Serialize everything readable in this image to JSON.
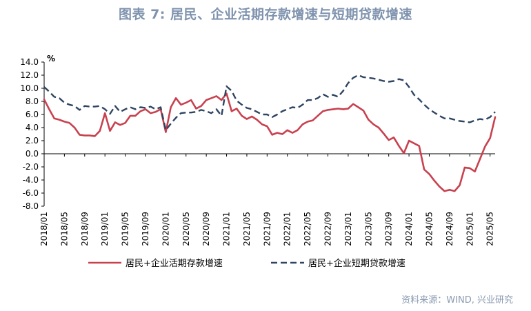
{
  "title": "图表 7: 居民、企业活期存款增速与短期贷款增速",
  "source": "资料来源：WIND, 兴业研究",
  "colors": {
    "demand": "#c8414f",
    "short": "#2e4461"
  },
  "chart_data": {
    "type": "line",
    "unit_label": "%",
    "ylim": [
      -8,
      14
    ],
    "yticks": [
      "14.0",
      "12.0",
      "10.0",
      "8.0",
      "6.0",
      "4.0",
      "2.0",
      "0.0",
      "-2.0",
      "-4.0",
      "-6.0",
      "-8.0"
    ],
    "ytick_values": [
      14,
      12,
      10,
      8,
      6,
      4,
      2,
      0,
      -2,
      -4,
      -6,
      -8
    ],
    "xticks": [
      "2018/01",
      "2018/05",
      "2018/09",
      "2019/01",
      "2019/05",
      "2019/09",
      "2020/01",
      "2020/05",
      "2020/09",
      "2021/01",
      "2021/05",
      "2021/09",
      "2022/01",
      "2022/05",
      "2022/09",
      "2023/01",
      "2023/05",
      "2023/09",
      "2024/01",
      "2024/05",
      "2024/09",
      "2025/01",
      "2025/05"
    ],
    "grid": false,
    "legend_position": "bottom",
    "x": [
      "2018/01",
      "2018/02",
      "2018/03",
      "2018/04",
      "2018/05",
      "2018/06",
      "2018/07",
      "2018/08",
      "2018/09",
      "2018/10",
      "2018/11",
      "2018/12",
      "2019/01",
      "2019/02",
      "2019/03",
      "2019/04",
      "2019/05",
      "2019/06",
      "2019/07",
      "2019/08",
      "2019/09",
      "2019/10",
      "2019/11",
      "2019/12",
      "2020/01",
      "2020/02",
      "2020/03",
      "2020/04",
      "2020/05",
      "2020/06",
      "2020/07",
      "2020/08",
      "2020/09",
      "2020/10",
      "2020/11",
      "2020/12",
      "2021/01",
      "2021/02",
      "2021/03",
      "2021/04",
      "2021/05",
      "2021/06",
      "2021/07",
      "2021/08",
      "2021/09",
      "2021/10",
      "2021/11",
      "2021/12",
      "2022/01",
      "2022/02",
      "2022/03",
      "2022/04",
      "2022/05",
      "2022/06",
      "2022/07",
      "2022/08",
      "2022/09",
      "2022/10",
      "2022/11",
      "2022/12",
      "2023/01",
      "2023/02",
      "2023/03",
      "2023/04",
      "2023/05",
      "2023/06",
      "2023/07",
      "2023/08",
      "2023/09",
      "2023/10",
      "2023/11",
      "2023/12",
      "2024/01",
      "2024/02",
      "2024/03",
      "2024/04",
      "2024/05",
      "2024/06",
      "2024/07",
      "2024/08",
      "2024/09",
      "2024/10",
      "2024/11",
      "2024/12",
      "2025/01",
      "2025/02",
      "2025/03",
      "2025/04",
      "2025/05",
      "2025/06"
    ],
    "series": [
      {
        "name": "居民+企业活期存款增速",
        "style": "solid",
        "values": [
          8.3,
          6.8,
          5.4,
          5.2,
          4.9,
          4.7,
          4.0,
          2.9,
          2.8,
          2.8,
          2.7,
          3.5,
          6.2,
          3.5,
          4.8,
          4.4,
          4.7,
          5.8,
          5.8,
          6.5,
          6.8,
          6.2,
          6.4,
          6.8,
          3.3,
          7.1,
          8.5,
          7.5,
          7.8,
          8.2,
          6.9,
          7.3,
          8.2,
          8.5,
          8.8,
          8.2,
          9.2,
          6.5,
          6.9,
          5.8,
          5.3,
          5.7,
          5.2,
          4.5,
          4.2,
          2.9,
          3.2,
          3.0,
          3.6,
          3.2,
          3.6,
          4.5,
          4.9,
          5.1,
          5.8,
          6.5,
          6.7,
          6.8,
          6.9,
          6.8,
          6.9,
          7.6,
          7.1,
          6.6,
          5.2,
          4.5,
          4.0,
          3.1,
          2.1,
          2.5,
          1.2,
          0.1,
          2.0,
          1.6,
          1.2,
          -2.4,
          -3.1,
          -4.1,
          -5.0,
          -5.7,
          -5.5,
          -5.7,
          -4.8,
          -2.1,
          -2.2,
          -2.7,
          -0.8,
          1.1,
          2.4,
          5.6
        ]
      },
      {
        "name": "居民+企业短期贷款增速",
        "style": "dashed",
        "values": [
          10.2,
          9.5,
          8.7,
          8.5,
          7.8,
          7.5,
          7.3,
          6.7,
          7.3,
          7.2,
          7.2,
          7.3,
          6.8,
          6.1,
          7.3,
          6.4,
          6.8,
          7.1,
          6.8,
          7.1,
          7.0,
          7.2,
          6.8,
          7.1,
          3.6,
          4.6,
          5.5,
          6.2,
          6.3,
          6.3,
          6.4,
          6.7,
          6.5,
          6.2,
          6.8,
          5.8,
          10.3,
          9.6,
          8.1,
          7.5,
          7.0,
          6.8,
          6.4,
          6.0,
          6.0,
          5.6,
          6.0,
          6.5,
          6.8,
          7.1,
          7.0,
          7.5,
          8.2,
          8.2,
          8.5,
          9.1,
          8.7,
          9.0,
          8.7,
          9.6,
          10.8,
          11.6,
          12.0,
          11.7,
          11.6,
          11.5,
          11.3,
          11.1,
          11.0,
          11.1,
          11.4,
          11.2,
          10.2,
          9.0,
          8.3,
          7.5,
          6.8,
          6.3,
          5.8,
          5.4,
          5.4,
          5.2,
          5.0,
          4.9,
          4.8,
          5.1,
          5.3,
          5.2,
          5.6,
          6.4
        ]
      }
    ]
  }
}
